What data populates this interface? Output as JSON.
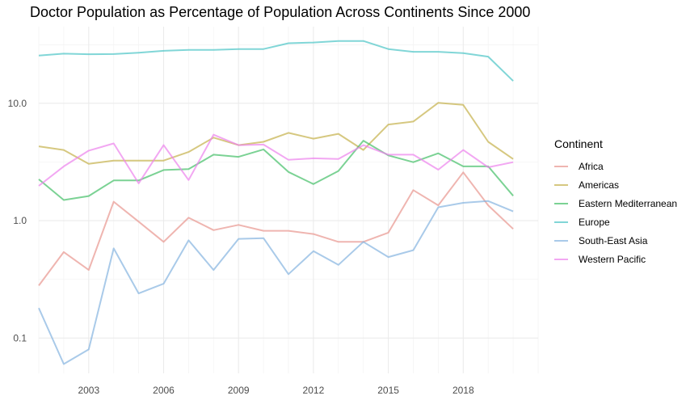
{
  "chart_data": {
    "type": "line",
    "title": "Doctor Population as Percentage of Population Across Continents Since 2000",
    "xlabel": "",
    "ylabel": "",
    "y_scale": "log",
    "xlim": [
      2001,
      2021
    ],
    "ylim": [
      0.05,
      45
    ],
    "x_ticks": [
      {
        "value": 2003,
        "label": "2003"
      },
      {
        "value": 2006,
        "label": "2006"
      },
      {
        "value": 2009,
        "label": "2009"
      },
      {
        "value": 2012,
        "label": "2012"
      },
      {
        "value": 2015,
        "label": "2015"
      },
      {
        "value": 2018,
        "label": "2018"
      }
    ],
    "y_ticks": [
      {
        "value": 0.1,
        "label": "0.1"
      },
      {
        "value": 1,
        "label": "1.0"
      },
      {
        "value": 10,
        "label": "10.0"
      }
    ],
    "grid": true,
    "legend": {
      "title": "Continent",
      "position": "right"
    },
    "x": [
      2001,
      2002,
      2003,
      2004,
      2005,
      2006,
      2007,
      2008,
      2009,
      2010,
      2011,
      2012,
      2013,
      2014,
      2015,
      2016,
      2017,
      2018,
      2019,
      2020
    ],
    "series": [
      {
        "name": "Africa",
        "color": "#e8958f",
        "values": [
          0.28,
          0.54,
          0.38,
          1.45,
          0.98,
          0.66,
          1.06,
          0.83,
          0.92,
          0.82,
          0.82,
          0.77,
          0.66,
          0.66,
          0.79,
          1.82,
          1.35,
          2.58,
          1.35,
          0.85
        ]
      },
      {
        "name": "Americas",
        "color": "#c4b14a",
        "values": [
          4.3,
          4.0,
          3.05,
          3.25,
          3.25,
          3.25,
          3.85,
          5.1,
          4.4,
          4.7,
          5.6,
          5.0,
          5.5,
          4.0,
          6.6,
          7.0,
          10.1,
          9.7,
          4.7,
          3.35
        ]
      },
      {
        "name": "Eastern Mediterranean",
        "color": "#43bf66",
        "values": [
          2.25,
          1.5,
          1.62,
          2.2,
          2.2,
          2.7,
          2.75,
          3.65,
          3.5,
          4.05,
          2.6,
          2.05,
          2.65,
          4.8,
          3.6,
          3.15,
          3.75,
          2.9,
          2.9,
          1.63
        ]
      },
      {
        "name": "Europe",
        "color": "#4cc4c6",
        "values": [
          25.5,
          26.5,
          26.2,
          26.3,
          27.0,
          28.0,
          28.5,
          28.5,
          29.0,
          29.0,
          32.5,
          33.0,
          34.0,
          34.0,
          29.0,
          27.5,
          27.5,
          26.8,
          25.0,
          15.5
        ]
      },
      {
        "name": "South-East Asia",
        "color": "#85b4e0",
        "values": [
          0.18,
          0.06,
          0.08,
          0.58,
          0.24,
          0.29,
          0.68,
          0.38,
          0.7,
          0.71,
          0.35,
          0.55,
          0.42,
          0.66,
          0.49,
          0.56,
          1.3,
          1.42,
          1.47,
          1.2
        ]
      },
      {
        "name": "Western Pacific",
        "color": "#ec82ec",
        "values": [
          1.98,
          2.9,
          3.95,
          4.55,
          2.08,
          4.4,
          2.22,
          5.4,
          4.4,
          4.45,
          3.3,
          3.4,
          3.35,
          4.4,
          3.65,
          3.65,
          2.72,
          4.0,
          2.85,
          3.15
        ]
      }
    ]
  }
}
